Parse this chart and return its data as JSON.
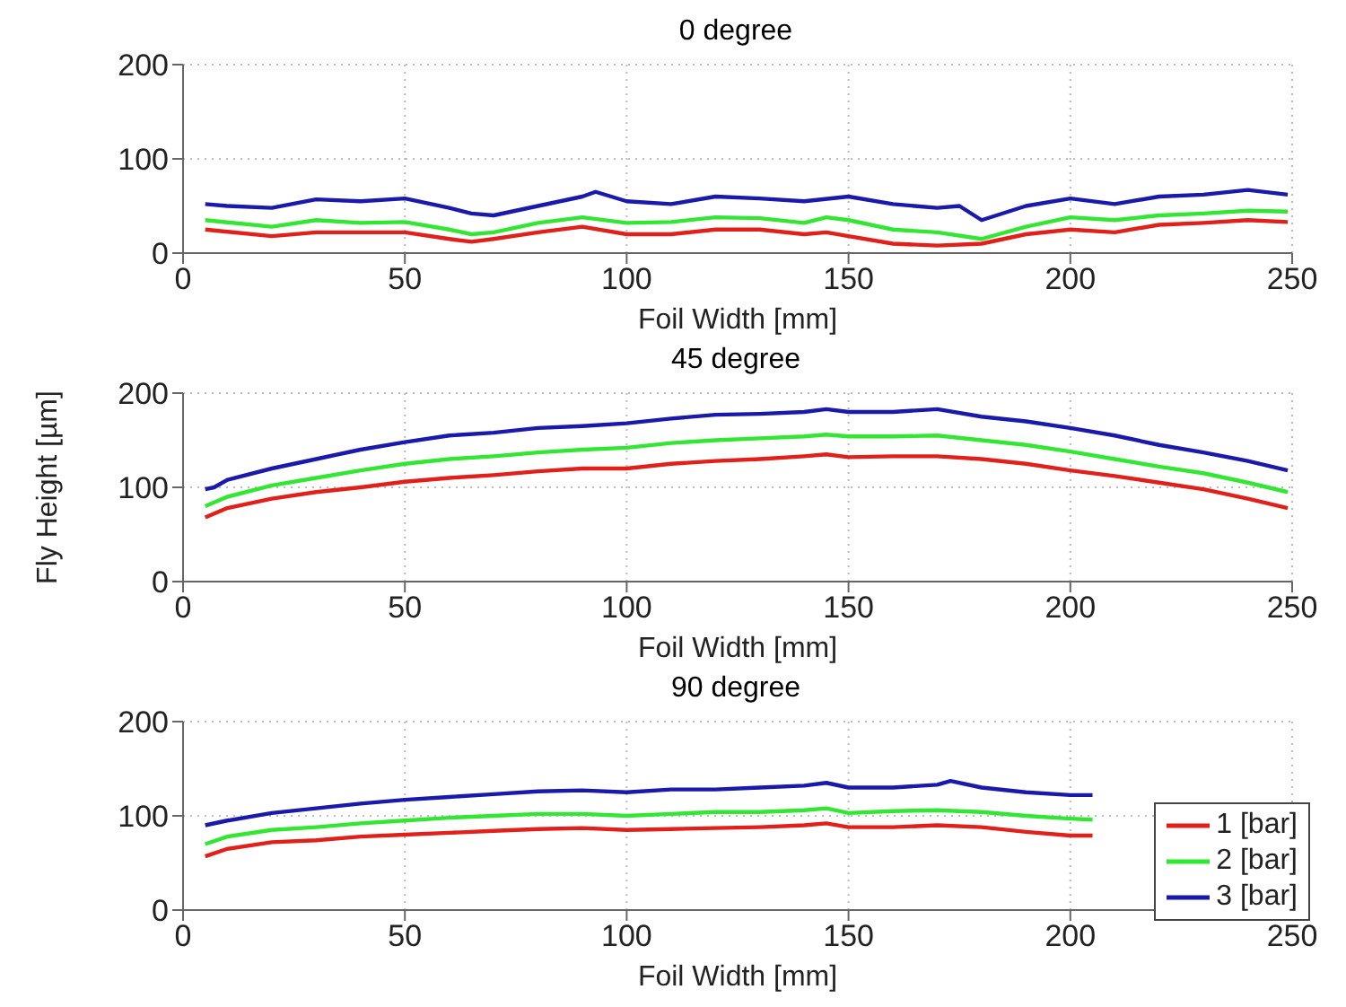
{
  "chart_data": [
    {
      "type": "line",
      "title": "0 degree",
      "xlabel": "Foil Width [mm]",
      "xlim": [
        0,
        250
      ],
      "xticks": [
        0,
        50,
        100,
        150,
        200,
        250
      ],
      "ylim": [
        0,
        200
      ],
      "yticks": [
        0,
        100,
        200
      ],
      "grid": true,
      "legend": false,
      "line_style": "solid",
      "marker": "none",
      "series": [
        {
          "color": "#e0201b",
          "x": [
            5,
            20,
            30,
            40,
            50,
            60,
            65,
            70,
            80,
            90,
            100,
            110,
            120,
            130,
            140,
            145,
            150,
            160,
            170,
            180,
            190,
            200,
            210,
            220,
            230,
            240,
            249
          ],
          "values": [
            25,
            18,
            22,
            22,
            22,
            15,
            12,
            15,
            22,
            28,
            20,
            20,
            25,
            25,
            20,
            22,
            18,
            10,
            8,
            10,
            20,
            25,
            22,
            30,
            32,
            35,
            33
          ]
        },
        {
          "color": "#33e633",
          "x": [
            5,
            20,
            30,
            40,
            50,
            60,
            65,
            70,
            80,
            90,
            100,
            110,
            120,
            130,
            140,
            145,
            150,
            160,
            170,
            180,
            190,
            200,
            210,
            220,
            230,
            240,
            249
          ],
          "values": [
            35,
            28,
            35,
            32,
            33,
            25,
            20,
            22,
            32,
            38,
            32,
            33,
            38,
            37,
            32,
            38,
            35,
            25,
            22,
            15,
            28,
            38,
            35,
            40,
            42,
            45,
            44
          ]
        },
        {
          "color": "#1a1aaa",
          "x": [
            5,
            10,
            20,
            30,
            40,
            50,
            60,
            65,
            70,
            80,
            90,
            93,
            100,
            110,
            120,
            130,
            140,
            150,
            160,
            170,
            175,
            180,
            190,
            200,
            210,
            220,
            230,
            240,
            249
          ],
          "values": [
            52,
            50,
            48,
            57,
            55,
            58,
            48,
            42,
            40,
            50,
            60,
            65,
            55,
            52,
            60,
            58,
            55,
            60,
            52,
            48,
            50,
            35,
            50,
            58,
            52,
            60,
            62,
            67,
            62
          ]
        }
      ]
    },
    {
      "type": "line",
      "title": "45 degree",
      "xlabel": "Foil Width [mm]",
      "ylabel": "Fly Height [µm]",
      "xlim": [
        0,
        250
      ],
      "xticks": [
        0,
        50,
        100,
        150,
        200,
        250
      ],
      "ylim": [
        0,
        200
      ],
      "yticks": [
        0,
        100,
        200
      ],
      "grid": true,
      "legend": false,
      "line_style": "solid",
      "marker": "none",
      "series": [
        {
          "color": "#e0201b",
          "x": [
            5,
            10,
            20,
            30,
            40,
            50,
            60,
            70,
            80,
            90,
            100,
            110,
            120,
            130,
            140,
            145,
            150,
            160,
            170,
            180,
            190,
            200,
            210,
            220,
            230,
            240,
            249
          ],
          "values": [
            68,
            78,
            88,
            95,
            100,
            106,
            110,
            113,
            117,
            120,
            120,
            125,
            128,
            130,
            133,
            135,
            132,
            133,
            133,
            130,
            125,
            118,
            112,
            105,
            98,
            88,
            78
          ]
        },
        {
          "color": "#33e633",
          "x": [
            5,
            10,
            20,
            30,
            40,
            50,
            60,
            70,
            80,
            90,
            100,
            110,
            120,
            130,
            140,
            145,
            150,
            160,
            170,
            180,
            190,
            200,
            210,
            220,
            230,
            240,
            249
          ],
          "values": [
            80,
            90,
            102,
            110,
            118,
            125,
            130,
            133,
            137,
            140,
            142,
            147,
            150,
            152,
            154,
            156,
            154,
            154,
            155,
            150,
            145,
            138,
            130,
            122,
            115,
            105,
            95
          ]
        },
        {
          "color": "#1a1aaa",
          "x": [
            5,
            7,
            10,
            20,
            30,
            40,
            50,
            60,
            70,
            80,
            90,
            100,
            110,
            120,
            130,
            140,
            145,
            150,
            160,
            170,
            180,
            190,
            200,
            210,
            220,
            230,
            240,
            249
          ],
          "values": [
            98,
            100,
            108,
            120,
            130,
            140,
            148,
            155,
            158,
            163,
            165,
            168,
            173,
            177,
            178,
            180,
            183,
            180,
            180,
            183,
            175,
            170,
            163,
            155,
            145,
            137,
            128,
            118
          ]
        }
      ]
    },
    {
      "type": "line",
      "title": "90 degree",
      "xlabel": "Foil Width [mm]",
      "xlim": [
        0,
        250
      ],
      "xticks": [
        0,
        50,
        100,
        150,
        200,
        250
      ],
      "ylim": [
        0,
        200
      ],
      "yticks": [
        0,
        100,
        200
      ],
      "grid": true,
      "legend": "bottom right",
      "line_style": "solid",
      "marker": "none",
      "series": [
        {
          "name": "1 [bar]",
          "color": "#e0201b",
          "x": [
            5,
            10,
            20,
            30,
            40,
            50,
            60,
            70,
            80,
            90,
            100,
            110,
            120,
            130,
            140,
            145,
            150,
            160,
            170,
            180,
            190,
            200,
            205
          ],
          "values": [
            57,
            65,
            72,
            74,
            78,
            80,
            82,
            84,
            86,
            87,
            85,
            86,
            87,
            88,
            90,
            92,
            88,
            88,
            90,
            88,
            83,
            79,
            79
          ]
        },
        {
          "name": "2 [bar]",
          "color": "#33e633",
          "x": [
            5,
            10,
            20,
            30,
            40,
            50,
            60,
            70,
            80,
            90,
            100,
            110,
            120,
            130,
            140,
            145,
            150,
            160,
            170,
            180,
            190,
            200,
            205
          ],
          "values": [
            70,
            78,
            85,
            88,
            92,
            95,
            98,
            100,
            102,
            102,
            100,
            102,
            104,
            104,
            106,
            108,
            103,
            105,
            106,
            104,
            100,
            97,
            96
          ]
        },
        {
          "name": "3 [bar]",
          "color": "#1a1aaa",
          "x": [
            5,
            10,
            20,
            30,
            40,
            50,
            60,
            70,
            80,
            90,
            100,
            110,
            120,
            130,
            140,
            145,
            150,
            160,
            170,
            173,
            180,
            190,
            200,
            205
          ],
          "values": [
            90,
            95,
            103,
            108,
            113,
            117,
            120,
            123,
            126,
            127,
            125,
            128,
            128,
            130,
            132,
            135,
            130,
            130,
            133,
            137,
            130,
            125,
            122,
            122
          ]
        }
      ]
    }
  ]
}
